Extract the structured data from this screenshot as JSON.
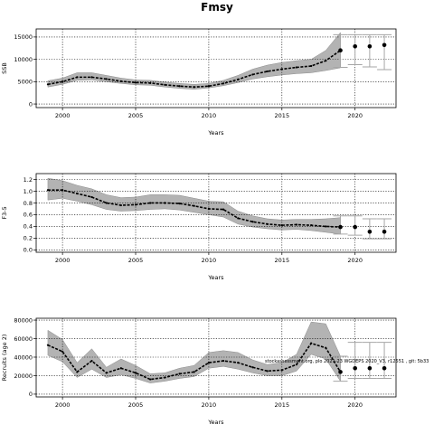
{
  "title": "Fmsy",
  "note": "stockassessment.org, plo 2021-23 WGDEPS 2020_V3, r12551 , git: 5b33",
  "colors": {
    "band": "#b3b3b3",
    "line": "#000000",
    "error_bar": "#a6a6a6",
    "grid": "#000000"
  },
  "chart_data": [
    {
      "type": "line",
      "ylabel": "SSB",
      "xlabel": "Years",
      "xlim": [
        1998.2,
        2022.8
      ],
      "ylim": [
        -800,
        16800
      ],
      "xticks": [
        2000,
        2005,
        2010,
        2015,
        2020
      ],
      "yticks": [
        0,
        5000,
        10000,
        15000
      ],
      "ytick_labels": [
        "0",
        "5000",
        "10000",
        "15000"
      ],
      "grid": true,
      "x": [
        1999,
        2000,
        2001,
        2002,
        2003,
        2004,
        2005,
        2006,
        2007,
        2008,
        2009,
        2010,
        2011,
        2012,
        2013,
        2014,
        2015,
        2016,
        2017,
        2018,
        2019
      ],
      "y": [
        4400,
        5000,
        6000,
        6000,
        5600,
        5100,
        4800,
        4700,
        4300,
        4000,
        3800,
        4000,
        4600,
        5500,
        6600,
        7300,
        7800,
        8200,
        8500,
        9700,
        12000
      ],
      "lower": [
        3800,
        4400,
        5300,
        5400,
        5000,
        4600,
        4300,
        4200,
        3800,
        3500,
        3300,
        3600,
        4100,
        4800,
        5600,
        6100,
        6500,
        6800,
        7000,
        7500,
        8100
      ],
      "upper": [
        5200,
        5800,
        7000,
        7000,
        6400,
        5800,
        5400,
        5300,
        4900,
        4600,
        4400,
        4600,
        5300,
        6400,
        7800,
        8700,
        9300,
        9700,
        10000,
        12000,
        16000
      ],
      "forecast": {
        "x": [
          2019,
          2020,
          2021,
          2022
        ],
        "y": [
          12000,
          12900,
          12900,
          13200
        ],
        "lower": [
          8200,
          8800,
          8300,
          7700
        ],
        "upper": [
          15500,
          15500,
          15500,
          15500
        ]
      }
    },
    {
      "type": "line",
      "ylabel": "F3-5",
      "xlabel": "Years",
      "xlim": [
        1998.2,
        2022.8
      ],
      "ylim": [
        -0.04,
        1.3
      ],
      "xticks": [
        2000,
        2005,
        2010,
        2015,
        2020
      ],
      "yticks": [
        0,
        0.2,
        0.4,
        0.6,
        0.8,
        1.0,
        1.2
      ],
      "ytick_labels": [
        "0.0",
        "0.2",
        "0.4",
        "0.6",
        "0.8",
        "1.0",
        "1.2"
      ],
      "grid": true,
      "x": [
        1999,
        2000,
        2001,
        2002,
        2003,
        2004,
        2005,
        2006,
        2007,
        2008,
        2009,
        2010,
        2011,
        2012,
        2013,
        2014,
        2015,
        2016,
        2017,
        2018,
        2019
      ],
      "y": [
        1.02,
        1.02,
        0.96,
        0.9,
        0.8,
        0.76,
        0.77,
        0.8,
        0.8,
        0.79,
        0.75,
        0.7,
        0.69,
        0.54,
        0.48,
        0.44,
        0.42,
        0.43,
        0.42,
        0.4,
        0.39
      ],
      "lower": [
        0.85,
        0.88,
        0.83,
        0.77,
        0.69,
        0.66,
        0.67,
        0.69,
        0.7,
        0.68,
        0.64,
        0.6,
        0.56,
        0.44,
        0.39,
        0.36,
        0.34,
        0.35,
        0.33,
        0.3,
        0.27
      ],
      "upper": [
        1.22,
        1.18,
        1.1,
        1.04,
        0.94,
        0.89,
        0.9,
        0.94,
        0.94,
        0.93,
        0.88,
        0.83,
        0.82,
        0.66,
        0.58,
        0.53,
        0.51,
        0.52,
        0.52,
        0.53,
        0.55
      ],
      "forecast": {
        "x": [
          2019,
          2020,
          2021,
          2022
        ],
        "y": [
          0.39,
          0.39,
          0.31,
          0.31
        ],
        "lower": [
          0.27,
          0.25,
          0.19,
          0.19
        ],
        "upper": [
          0.58,
          0.58,
          0.53,
          0.53
        ]
      }
    },
    {
      "type": "line",
      "ylabel": "Recruits (age 2)",
      "xlabel": "Years",
      "xlim": [
        1998.2,
        2022.8
      ],
      "ylim": [
        -3000,
        82000
      ],
      "xticks": [
        2000,
        2005,
        2010,
        2015,
        2020
      ],
      "yticks": [
        0,
        20000,
        40000,
        60000,
        80000
      ],
      "ytick_labels": [
        "0",
        "20000",
        "40000",
        "60000",
        "80000"
      ],
      "grid": true,
      "x": [
        1999,
        2000,
        2001,
        2002,
        2003,
        2004,
        2005,
        2006,
        2007,
        2008,
        2009,
        2010,
        2011,
        2012,
        2013,
        2014,
        2015,
        2016,
        2017,
        2018,
        2019
      ],
      "y": [
        53000,
        46000,
        24000,
        36000,
        23000,
        28000,
        23000,
        16000,
        18000,
        22000,
        24000,
        34000,
        36000,
        34000,
        29000,
        25000,
        26000,
        32000,
        55000,
        50000,
        24000
      ],
      "lower": [
        42000,
        35000,
        18000,
        27000,
        18000,
        21000,
        17000,
        12000,
        14000,
        17000,
        19000,
        28000,
        30000,
        27000,
        23000,
        20000,
        20000,
        25000,
        43000,
        38000,
        14000
      ],
      "upper": [
        69000,
        59000,
        34000,
        49000,
        29000,
        38000,
        31000,
        22000,
        23000,
        28000,
        31000,
        45000,
        47000,
        45000,
        37000,
        32000,
        34000,
        43000,
        78000,
        76000,
        41000
      ],
      "forecast": {
        "x": [
          2019,
          2020,
          2021,
          2022
        ],
        "y": [
          24000,
          28000,
          28000,
          28000
        ],
        "lower": [
          14000,
          17000,
          17000,
          17000
        ],
        "upper": [
          41000,
          56000,
          56000,
          56000
        ]
      }
    }
  ]
}
